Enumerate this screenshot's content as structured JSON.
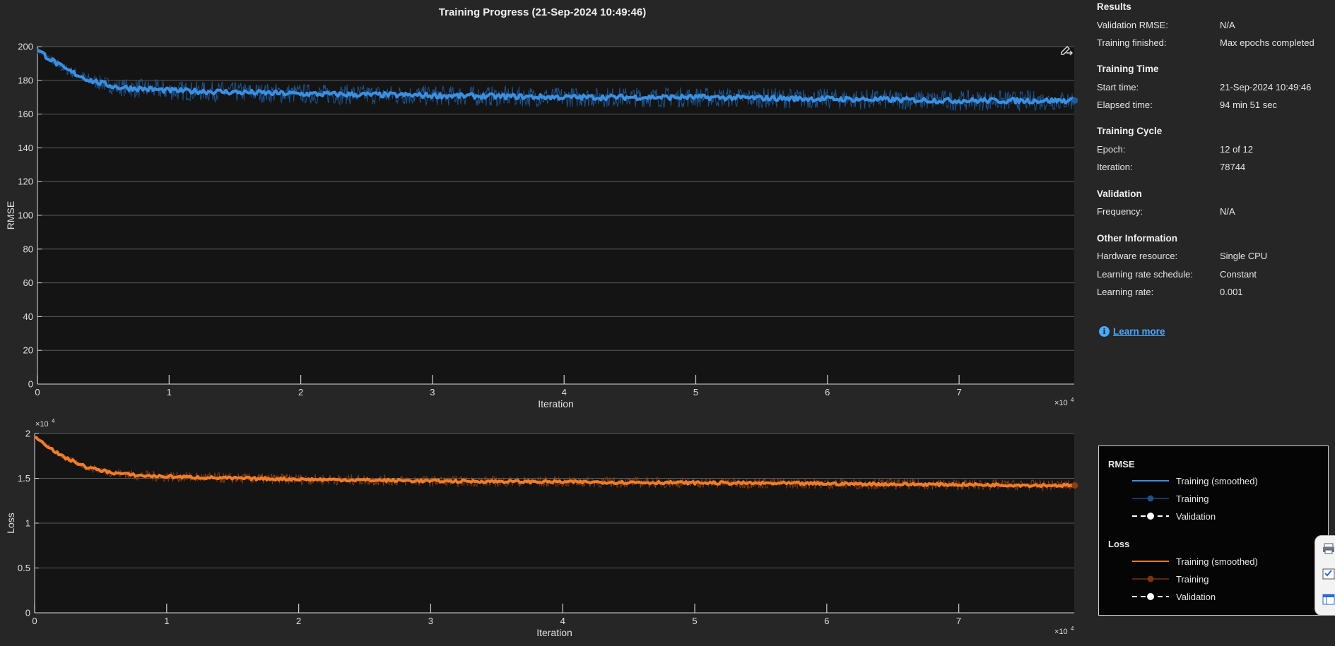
{
  "title": "Training Progress (21-Sep-2024 10:49:46)",
  "axes_toolbar_icon": "export-pencil-icon",
  "info": {
    "results": {
      "heading": "Results",
      "rows": [
        {
          "key": "Validation RMSE:",
          "value": "N/A"
        },
        {
          "key": "Training finished:",
          "value": "Max epochs completed"
        }
      ]
    },
    "training_time": {
      "heading": "Training Time",
      "rows": [
        {
          "key": "Start time:",
          "value": "21-Sep-2024 10:49:46"
        },
        {
          "key": "Elapsed time:",
          "value": "94 min 51 sec"
        }
      ]
    },
    "training_cycle": {
      "heading": "Training Cycle",
      "rows": [
        {
          "key": "Epoch:",
          "value": "12 of 12"
        },
        {
          "key": "Iteration:",
          "value": "78744"
        }
      ]
    },
    "validation": {
      "heading": "Validation",
      "rows": [
        {
          "key": "Frequency:",
          "value": "N/A"
        }
      ]
    },
    "other": {
      "heading": "Other Information",
      "rows": [
        {
          "key": "Hardware resource:",
          "value": "Single CPU"
        },
        {
          "key": "Learning rate schedule:",
          "value": "Constant"
        },
        {
          "key": "Learning rate:",
          "value": "0.001"
        }
      ]
    },
    "learn_more": "Learn more"
  },
  "legend": {
    "rmse_heading": "RMSE",
    "loss_heading": "Loss",
    "rmse_items": [
      "Training (smoothed)",
      "Training",
      "Validation"
    ],
    "loss_items": [
      "Training (smoothed)",
      "Training",
      "Validation"
    ]
  },
  "colors": {
    "rmse_smoothed": "#3b8fe0",
    "rmse_raw": "#1f5a99",
    "loss_smoothed": "#f07d2c",
    "loss_raw": "#8a3f12",
    "validation": "#ffffff"
  },
  "chart_data": [
    {
      "type": "line",
      "ylabel": "RMSE",
      "xlabel": "Iteration",
      "x_multiplier": "×10",
      "x_multiplier_exp": "4",
      "xlim": [
        0,
        78744
      ],
      "ylim": [
        0,
        200
      ],
      "xticks": [
        0,
        1,
        2,
        3,
        4,
        5,
        6,
        7
      ],
      "yticks": [
        0,
        20,
        40,
        60,
        80,
        100,
        120,
        140,
        160,
        180,
        200
      ],
      "grid": true,
      "series": [
        {
          "name": "Training (smoothed)",
          "x": [
            0,
            2000,
            4000,
            6000,
            8000,
            10000,
            15000,
            20000,
            30000,
            40000,
            50000,
            60000,
            70000,
            78744
          ],
          "y": [
            198,
            187,
            180,
            176,
            175,
            174,
            173,
            172,
            171,
            170,
            170,
            169,
            168,
            168
          ]
        }
      ]
    },
    {
      "type": "line",
      "ylabel": "Loss",
      "xlabel": "Iteration",
      "x_multiplier": "×10",
      "x_multiplier_exp": "4",
      "y_multiplier": "×10",
      "y_multiplier_exp": "4",
      "xlim": [
        0,
        78744
      ],
      "ylim": [
        0,
        2
      ],
      "xticks": [
        0,
        1,
        2,
        3,
        4,
        5,
        6,
        7
      ],
      "yticks": [
        0,
        0.5,
        1,
        1.5,
        2
      ],
      "grid": true,
      "series": [
        {
          "name": "Training (smoothed)",
          "x": [
            0,
            2000,
            4000,
            6000,
            8000,
            10000,
            15000,
            20000,
            30000,
            40000,
            50000,
            60000,
            70000,
            78744
          ],
          "y": [
            1.97,
            1.75,
            1.62,
            1.56,
            1.53,
            1.52,
            1.5,
            1.49,
            1.47,
            1.46,
            1.45,
            1.44,
            1.43,
            1.42
          ]
        }
      ]
    }
  ]
}
